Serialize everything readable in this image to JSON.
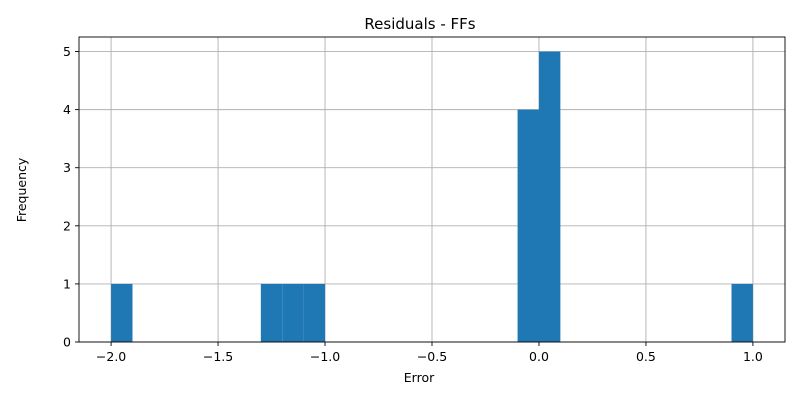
{
  "chart_data": {
    "type": "bar",
    "subtype": "histogram",
    "title": "Residuals - FFs",
    "xlabel": "Error",
    "ylabel": "Frequency",
    "xlim": [
      -2.15,
      1.15
    ],
    "ylim": [
      0,
      5.25
    ],
    "xticks": [
      -2.0,
      -1.5,
      -1.0,
      -0.5,
      0.0,
      0.5,
      1.0
    ],
    "xtick_labels": [
      "−2.0",
      "−1.5",
      "−1.0",
      "−0.5",
      "0.0",
      "0.5",
      "1.0"
    ],
    "yticks": [
      0,
      1,
      2,
      3,
      4,
      5
    ],
    "ytick_labels": [
      "0",
      "1",
      "2",
      "3",
      "4",
      "5"
    ],
    "grid": true,
    "legend": "none",
    "bar_color": "#1f77b4",
    "bins": [
      {
        "start": -2.0,
        "end": -1.9,
        "count": 1
      },
      {
        "start": -1.3,
        "end": -1.2,
        "count": 1
      },
      {
        "start": -1.2,
        "end": -1.1,
        "count": 1
      },
      {
        "start": -1.1,
        "end": -1.0,
        "count": 1
      },
      {
        "start": -0.1,
        "end": 0.0,
        "count": 4
      },
      {
        "start": 0.0,
        "end": 0.1,
        "count": 5
      },
      {
        "start": 0.9,
        "end": 1.0,
        "count": 1
      }
    ]
  }
}
